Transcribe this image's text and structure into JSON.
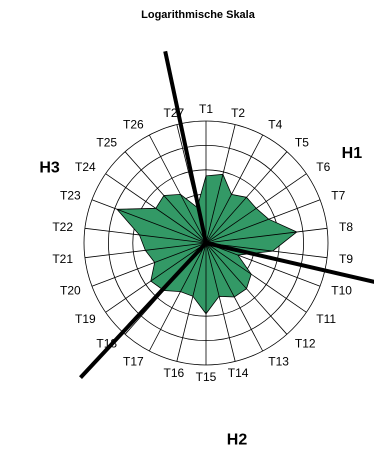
{
  "chart_data": {
    "type": "radar",
    "title": "Logarithmische Skala",
    "categories": [
      "T1",
      "T2",
      "T4",
      "T5",
      "T6",
      "T7",
      "T8",
      "T9",
      "T10",
      "T11",
      "T12",
      "T13",
      "T14",
      "T15",
      "T16",
      "T17",
      "T18",
      "T19",
      "T20",
      "T21",
      "T22",
      "T23",
      "T24",
      "T25",
      "T26",
      "T27"
    ],
    "values": [
      0.55,
      0.58,
      0.45,
      0.5,
      0.5,
      0.55,
      0.75,
      0.55,
      0.28,
      0.45,
      0.5,
      0.5,
      0.45,
      0.58,
      0.45,
      0.45,
      0.52,
      0.55,
      0.45,
      0.5,
      0.55,
      0.78,
      0.5,
      0.52,
      0.45,
      0.3
    ],
    "rings": 5,
    "grid": true,
    "fill_color": "#339966",
    "divider_angles_deg": [
      -12,
      103,
      223
    ],
    "regions": [
      {
        "label": "H1",
        "angle_deg": 58
      },
      {
        "label": "H2",
        "angle_deg": 171
      },
      {
        "label": "H3",
        "angle_deg": 296
      }
    ]
  }
}
